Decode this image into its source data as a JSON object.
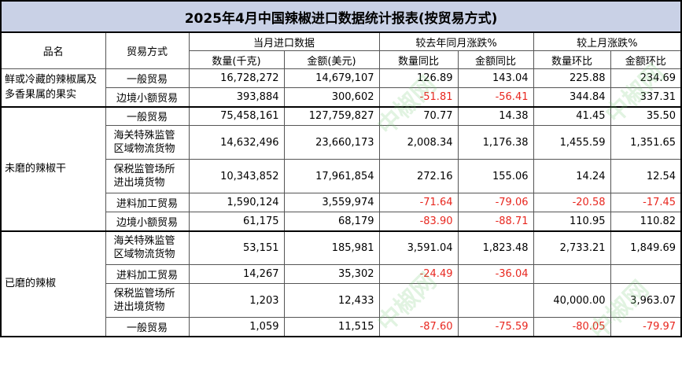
{
  "title": "2025年4月中国辣椒进口数据统计报表(按贸易方式)",
  "headers": {
    "product": "品名",
    "trade_mode": "贸易方式",
    "group_current": "当月进口数据",
    "group_yoy": "较去年同月涨跌%",
    "group_mom": "较上月涨跌%",
    "qty": "数量(千克)",
    "amount": "金额(美元)",
    "qty_yoy": "数量同比",
    "amt_yoy": "金额同比",
    "qty_mom": "数量环比",
    "amt_mom": "金额环比"
  },
  "groups": [
    {
      "product": "鲜或冷藏的辣椒属及多香果属的果实",
      "rows": [
        {
          "trade": "一般贸易",
          "qty": "16,728,272",
          "amount": "14,679,107",
          "qty_yoy": "126.89",
          "amt_yoy": "143.04",
          "qty_mom": "225.88",
          "amt_mom": "234.69"
        },
        {
          "trade": "边境小额贸易",
          "qty": "393,884",
          "amount": "300,602",
          "qty_yoy": "-51.81",
          "amt_yoy": "-56.41",
          "qty_mom": "344.84",
          "amt_mom": "337.31"
        }
      ]
    },
    {
      "product": "未磨的辣椒干",
      "rows": [
        {
          "trade": "一般贸易",
          "qty": "75,458,161",
          "amount": "127,759,827",
          "qty_yoy": "70.77",
          "amt_yoy": "14.38",
          "qty_mom": "41.45",
          "amt_mom": "35.50"
        },
        {
          "trade": "海关特殊监管区域物流货物",
          "qty": "14,632,496",
          "amount": "23,660,173",
          "qty_yoy": "2,008.34",
          "amt_yoy": "1,176.38",
          "qty_mom": "1,455.59",
          "amt_mom": "1,351.65"
        },
        {
          "trade": "保税监管场所进出境货物",
          "qty": "10,343,852",
          "amount": "17,961,854",
          "qty_yoy": "272.16",
          "amt_yoy": "155.06",
          "qty_mom": "14.24",
          "amt_mom": "12.54"
        },
        {
          "trade": "进料加工贸易",
          "qty": "1,590,124",
          "amount": "3,559,974",
          "qty_yoy": "-71.64",
          "amt_yoy": "-79.06",
          "qty_mom": "-20.58",
          "amt_mom": "-17.45"
        },
        {
          "trade": "边境小额贸易",
          "qty": "61,175",
          "amount": "68,179",
          "qty_yoy": "-83.90",
          "amt_yoy": "-88.71",
          "qty_mom": "110.95",
          "amt_mom": "110.82"
        }
      ]
    },
    {
      "product": "已磨的辣椒",
      "rows": [
        {
          "trade": "海关特殊监管区域物流货物",
          "qty": "53,151",
          "amount": "185,981",
          "qty_yoy": "3,591.04",
          "amt_yoy": "1,823.48",
          "qty_mom": "2,733.21",
          "amt_mom": "1,849.69"
        },
        {
          "trade": "进料加工贸易",
          "qty": "14,267",
          "amount": "35,302",
          "qty_yoy": "-24.49",
          "amt_yoy": "-36.04",
          "qty_mom": "",
          "amt_mom": ""
        },
        {
          "trade": "保税监管场所进出境货物",
          "qty": "1,203",
          "amount": "12,433",
          "qty_yoy": "",
          "amt_yoy": "",
          "qty_mom": "40,000.00",
          "amt_mom": "3,963.07"
        },
        {
          "trade": "一般贸易",
          "qty": "1,059",
          "amount": "11,515",
          "qty_yoy": "-87.60",
          "amt_yoy": "-75.59",
          "qty_mom": "-80.05",
          "amt_mom": "-79.97"
        }
      ]
    }
  ],
  "colors": {
    "title_bg": "#c9d1e6",
    "negative": "#e8271f",
    "watermark": "#78c878"
  },
  "watermark_text": "中椒网"
}
